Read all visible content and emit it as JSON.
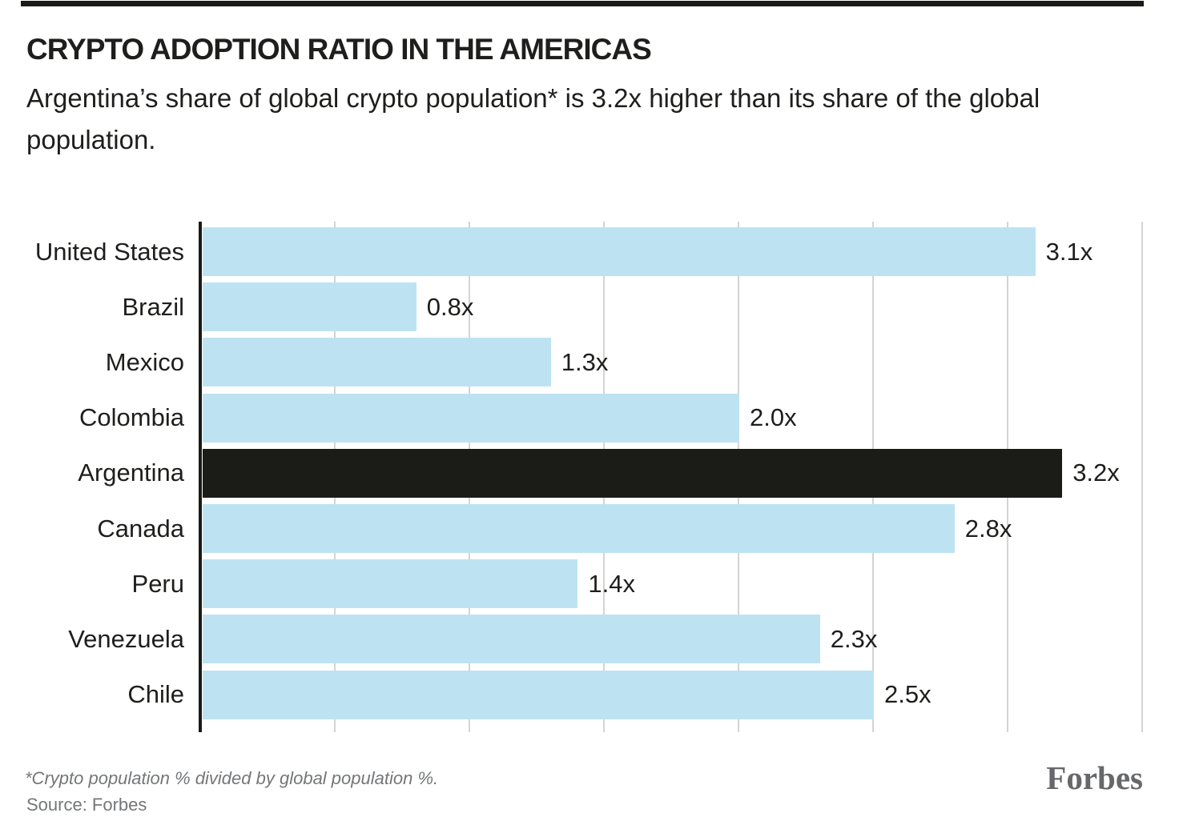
{
  "header": {
    "title": "CRYPTO ADOPTION RATIO IN THE AMERICAS",
    "subtitle": "Argentina’s share of global crypto population* is 3.2x higher than its share of the global population."
  },
  "chart_data": {
    "type": "bar",
    "orientation": "horizontal",
    "title": "CRYPTO ADOPTION RATIO IN THE AMERICAS",
    "categories": [
      "United States",
      "Brazil",
      "Mexico",
      "Colombia",
      "Argentina",
      "Canada",
      "Peru",
      "Venezuela",
      "Chile"
    ],
    "values": [
      3.1,
      0.8,
      1.3,
      2.0,
      3.2,
      2.8,
      1.4,
      2.3,
      2.5
    ],
    "value_labels": [
      "3.1x",
      "0.8x",
      "1.3x",
      "2.0x",
      "3.2x",
      "2.8x",
      "1.4x",
      "2.3x",
      "2.5x"
    ],
    "highlight_category": "Argentina",
    "highlight_index": 4,
    "bar_color": "#BDE3F3",
    "highlight_color": "#1B1B18",
    "axis_color": "#1B1B18",
    "gridline_color": "#D4D4D4",
    "xlim": [
      0,
      3.5
    ],
    "gridlines": [
      0.5,
      1.0,
      1.5,
      2.0,
      2.5,
      3.0,
      3.5
    ],
    "grid": true,
    "legend": false,
    "xlabel": "",
    "ylabel": ""
  },
  "footer": {
    "footnote": "*Crypto population % divided by global population %.",
    "source": "Source: Forbes",
    "brand": "Forbes"
  }
}
